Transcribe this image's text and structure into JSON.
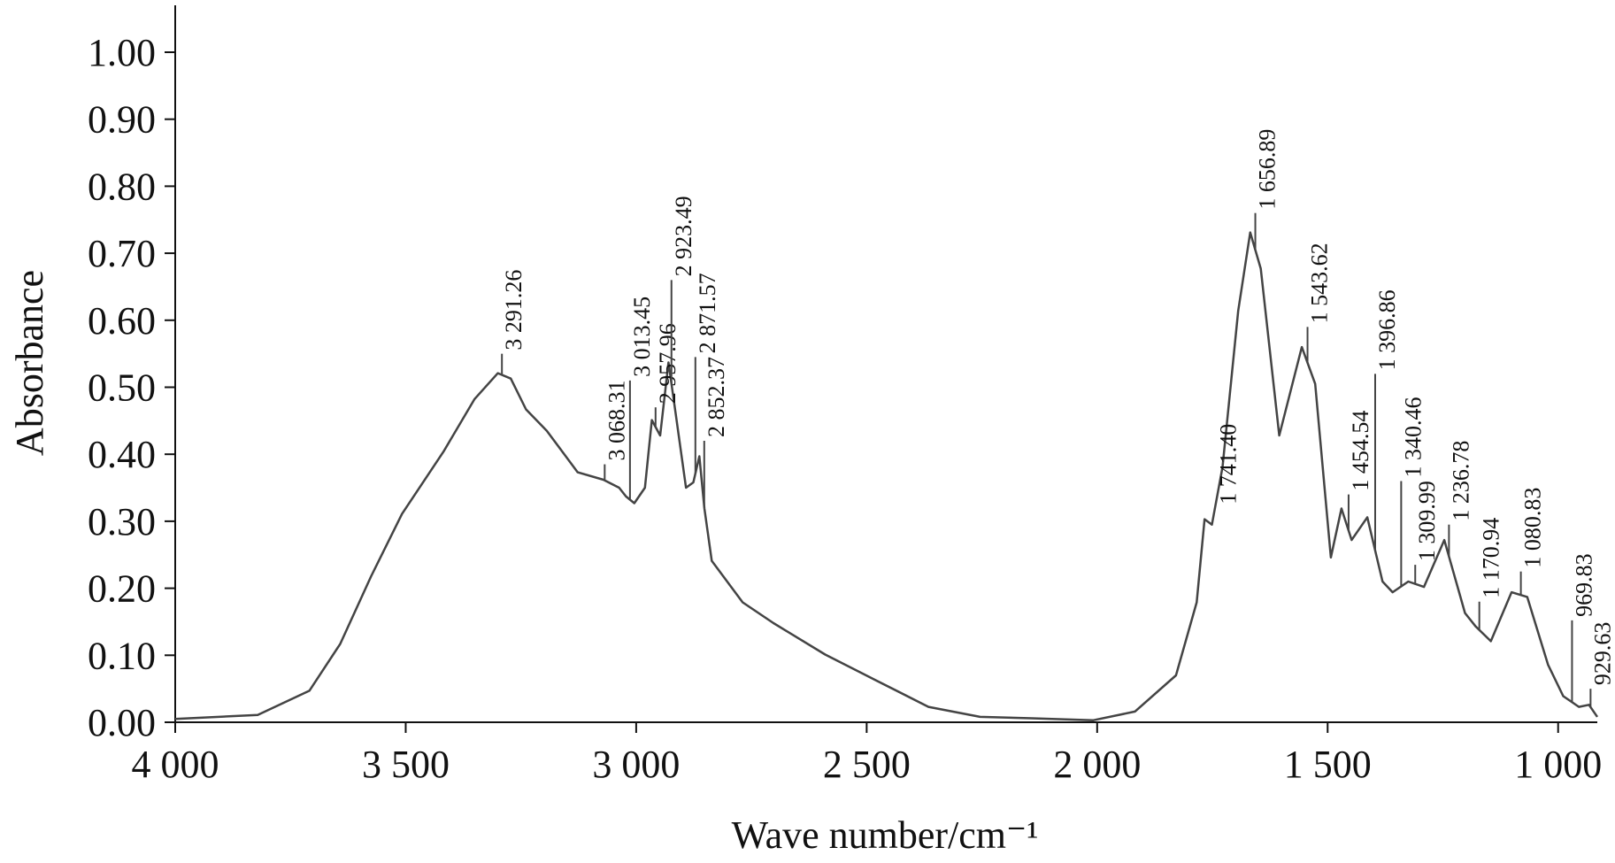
{
  "chart_data": {
    "type": "line",
    "xlabel": "Wave number/cm⁻¹",
    "ylabel": "Absorbance",
    "color": "#444444",
    "x": [
      4000,
      3821,
      3709,
      3642,
      3575,
      3508,
      3418,
      3351,
      3300,
      3272,
      3239,
      3194,
      3127,
      3071,
      3037,
      3022,
      3004,
      2981,
      2966,
      2948,
      2930,
      2914,
      2892,
      2876,
      2863,
      2852,
      2836,
      2769,
      2702,
      2590,
      2478,
      2366,
      2254,
      2142,
      2008,
      1918,
      1829,
      1784,
      1767,
      1751,
      1728,
      1694,
      1668,
      1645,
      1605,
      1556,
      1527,
      1493,
      1470,
      1448,
      1414,
      1381,
      1359,
      1325,
      1291,
      1247,
      1202,
      1179,
      1146,
      1101,
      1067,
      1022,
      989,
      955,
      933,
      915
    ],
    "values": [
      0.005,
      0.011,
      0.047,
      0.117,
      0.218,
      0.311,
      0.404,
      0.482,
      0.521,
      0.513,
      0.467,
      0.435,
      0.373,
      0.362,
      0.35,
      0.337,
      0.327,
      0.35,
      0.451,
      0.428,
      0.537,
      0.459,
      0.35,
      0.358,
      0.397,
      0.319,
      0.241,
      0.179,
      0.148,
      0.101,
      0.062,
      0.023,
      0.008,
      0.006,
      0.003,
      0.016,
      0.07,
      0.179,
      0.303,
      0.295,
      0.381,
      0.614,
      0.731,
      0.677,
      0.428,
      0.56,
      0.505,
      0.246,
      0.319,
      0.272,
      0.306,
      0.21,
      0.194,
      0.21,
      0.202,
      0.272,
      0.163,
      0.143,
      0.121,
      0.194,
      0.187,
      0.086,
      0.039,
      0.023,
      0.026,
      0.008
    ],
    "xlim": [
      4000,
      915
    ],
    "ylim": [
      0,
      1.07
    ],
    "xticks": [
      {
        "value": 4000,
        "label": "4 000"
      },
      {
        "value": 3500,
        "label": "3 500"
      },
      {
        "value": 3000,
        "label": "3 000"
      },
      {
        "value": 2500,
        "label": "2 500"
      },
      {
        "value": 2000,
        "label": "2 000"
      },
      {
        "value": 1500,
        "label": "1 500"
      },
      {
        "value": 1000,
        "label": "1 000"
      }
    ],
    "yticks": [
      {
        "value": 0,
        "label": "0.00"
      },
      {
        "value": 0.1,
        "label": "0.10"
      },
      {
        "value": 0.2,
        "label": "0.20"
      },
      {
        "value": 0.3,
        "label": "0.30"
      },
      {
        "value": 0.4,
        "label": "0.40"
      },
      {
        "value": 0.5,
        "label": "0.50"
      },
      {
        "value": 0.6,
        "label": "0.60"
      },
      {
        "value": 0.7,
        "label": "0.70"
      },
      {
        "value": 0.8,
        "label": "0.80"
      },
      {
        "value": 0.9,
        "label": "0.90"
      },
      {
        "value": 1,
        "label": "1.00"
      }
    ],
    "peaks": [
      {
        "x": 3291.26,
        "y": 0.55,
        "label": "3 291.26"
      },
      {
        "x": 3068.31,
        "y": 0.385,
        "label": "3 068.31"
      },
      {
        "x": 3013.45,
        "y": 0.51,
        "label": "3 013.45"
      },
      {
        "x": 2957.96,
        "y": 0.47,
        "label": "2 957.96"
      },
      {
        "x": 2923.49,
        "y": 0.66,
        "label": "2 923.49"
      },
      {
        "x": 2871.57,
        "y": 0.545,
        "label": "2 871.57"
      },
      {
        "x": 2852.37,
        "y": 0.42,
        "label": "2 852.37"
      },
      {
        "x": 1741.4,
        "y": 0.32,
        "label": "1 741.40"
      },
      {
        "x": 1656.89,
        "y": 0.76,
        "label": "1 656.89"
      },
      {
        "x": 1543.62,
        "y": 0.59,
        "label": "1 543.62"
      },
      {
        "x": 1454.54,
        "y": 0.34,
        "label": "1 454.54"
      },
      {
        "x": 1396.86,
        "y": 0.52,
        "label": "1 396.86"
      },
      {
        "x": 1340.46,
        "y": 0.36,
        "label": "1 340.46"
      },
      {
        "x": 1309.99,
        "y": 0.235,
        "label": "1 309.99"
      },
      {
        "x": 1236.78,
        "y": 0.295,
        "label": "1 236.78"
      },
      {
        "x": 1170.94,
        "y": 0.18,
        "label": "1 170.94"
      },
      {
        "x": 1080.83,
        "y": 0.225,
        "label": "1 080.83"
      },
      {
        "x": 969.83,
        "y": 0.152,
        "label": "969.83"
      },
      {
        "x": 929.63,
        "y": 0.05,
        "label": "929.63"
      }
    ]
  }
}
